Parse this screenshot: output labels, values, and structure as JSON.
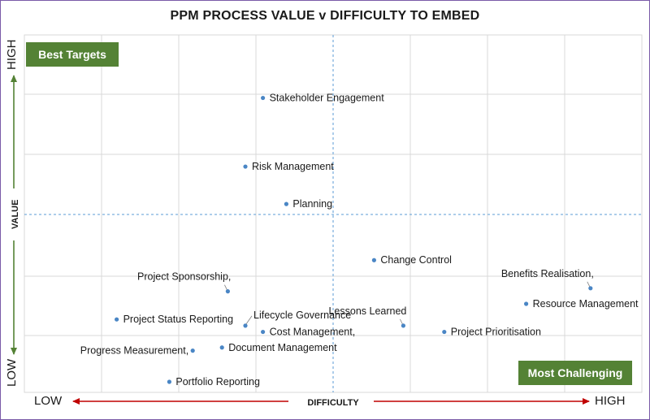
{
  "title": "PPM PROCESS VALUE v DIFFICULTY TO EMBED",
  "quadrants": {
    "best": "Best Targets",
    "challenging": "Most Challenging"
  },
  "axes": {
    "x_title": "DIFFICULTY",
    "y_title": "VALUE",
    "x_low": "LOW",
    "x_high": "HIGH",
    "y_low": "LOW",
    "y_high": "HIGH"
  },
  "colors": {
    "point": "#4a86c5",
    "arrow_x": "#c00000",
    "arrow_y": "#548235",
    "grid": "#d9d9d9",
    "divider": "#5b9bd5",
    "badge": "#548235"
  },
  "chart_data": {
    "type": "scatter",
    "title": "PPM PROCESS VALUE v DIFFICULTY TO EMBED",
    "xlabel": "DIFFICULTY",
    "ylabel": "VALUE",
    "xlim": [
      0,
      10
    ],
    "ylim": [
      0,
      10
    ],
    "grid": true,
    "points": [
      {
        "label": "Stakeholder Engagement",
        "x": 3.8,
        "y": 9.1,
        "anchor": "right"
      },
      {
        "label": "Risk Management",
        "x": 3.5,
        "y": 6.9,
        "anchor": "right"
      },
      {
        "label": "Planning",
        "x": 4.2,
        "y": 5.7,
        "anchor": "right"
      },
      {
        "label": "Change Control",
        "x": 5.7,
        "y": 3.9,
        "anchor": "right"
      },
      {
        "label": "Benefits Realisation,",
        "x": 9.4,
        "y": 3.0,
        "anchor": "above-left"
      },
      {
        "label": "Project Sponsorship,",
        "x": 3.2,
        "y": 2.9,
        "anchor": "above-left"
      },
      {
        "label": "Resource Management",
        "x": 8.3,
        "y": 2.5,
        "anchor": "right"
      },
      {
        "label": "Project Status Reporting",
        "x": 1.3,
        "y": 2.0,
        "anchor": "right"
      },
      {
        "label": "Lifecycle Governance",
        "x": 3.5,
        "y": 1.8,
        "anchor": "above-right"
      },
      {
        "label": "Lessons Learned",
        "x": 6.2,
        "y": 1.8,
        "anchor": "above-left"
      },
      {
        "label": "Cost Management,",
        "x": 3.8,
        "y": 1.6,
        "anchor": "right"
      },
      {
        "label": "Project Prioritisation",
        "x": 6.9,
        "y": 1.6,
        "anchor": "right"
      },
      {
        "label": "Progress Measurement,",
        "x": 2.6,
        "y": 1.0,
        "anchor": "left"
      },
      {
        "label": "Document Management",
        "x": 3.1,
        "y": 1.1,
        "anchor": "right"
      },
      {
        "label": "Portfolio Reporting",
        "x": 2.2,
        "y": 0.0,
        "anchor": "right"
      }
    ]
  }
}
